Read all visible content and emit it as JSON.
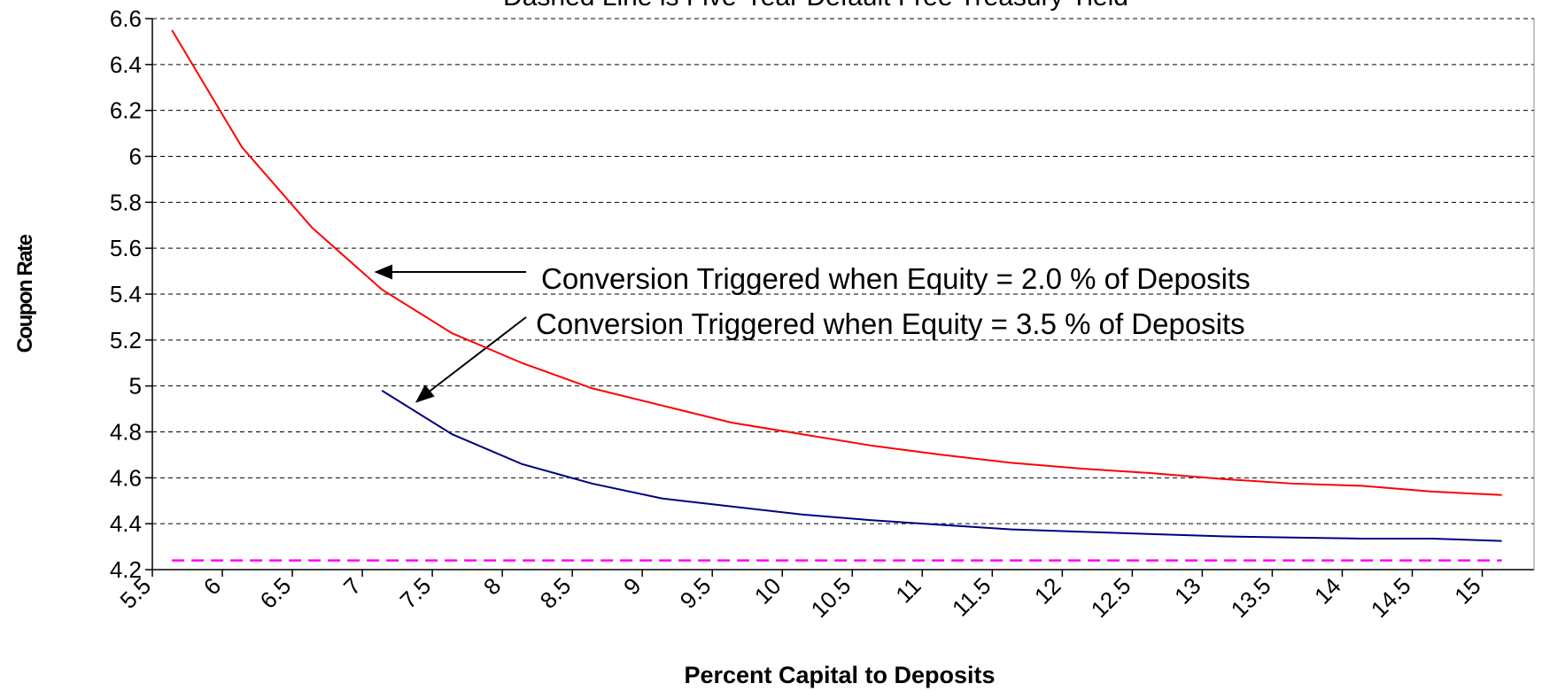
{
  "chart_data": {
    "type": "line",
    "title": "Dashed Line is Five-Year Default Free Treasury Yield",
    "x_label": "Percent Capital to Deposits",
    "y_label": "Coupon Rate",
    "annotations": [
      "Conversion Triggered when Equity = 2.0 % of Deposits",
      "Conversion Triggered when Equity = 3.5 % of Deposits"
    ],
    "x": [
      5.64,
      6.14,
      6.64,
      7.14,
      7.64,
      8.14,
      8.64,
      9.14,
      9.64,
      10.14,
      10.64,
      11.14,
      11.64,
      12.14,
      12.64,
      13.14,
      13.64,
      14.14,
      14.64,
      15.14
    ],
    "series": [
      {
        "name": "Conversion Triggered when Equity = 2.0 % of Deposits",
        "color": "#ff0000",
        "dashed": false,
        "values": [
          6.55,
          6.04,
          5.69,
          5.42,
          5.23,
          5.1,
          4.99,
          4.915,
          4.84,
          4.79,
          4.74,
          4.7,
          4.665,
          4.64,
          4.62,
          4.595,
          4.575,
          4.565,
          4.54,
          4.525
        ]
      },
      {
        "name": "Conversion Triggered when Equity = 3.5 % of Deposits",
        "color": "#000080",
        "dashed": false,
        "values": [
          null,
          null,
          null,
          4.98,
          4.79,
          4.66,
          4.575,
          4.51,
          4.475,
          4.44,
          4.415,
          4.395,
          4.375,
          4.365,
          4.355,
          4.345,
          4.34,
          4.335,
          4.335,
          4.325
        ]
      },
      {
        "name": "Five-Year Default Free Treasury Yield",
        "color": "#ff00ff",
        "dashed": true,
        "values": [
          4.24,
          4.24,
          4.24,
          4.24,
          4.24,
          4.24,
          4.24,
          4.24,
          4.24,
          4.24,
          4.24,
          4.24,
          4.24,
          4.24,
          4.24,
          4.24,
          4.24,
          4.24,
          4.24,
          4.24
        ]
      }
    ],
    "xlim": [
      5.5,
      15.37
    ],
    "xticks": [
      5.5,
      6,
      6.5,
      7,
      7.5,
      8,
      8.5,
      9,
      9.5,
      10,
      10.5,
      11,
      11.5,
      12,
      12.5,
      13,
      13.5,
      14,
      14.5,
      15
    ],
    "ylim": [
      4.2,
      6.6
    ],
    "yticks": [
      4.2,
      4.4,
      4.6,
      4.8,
      5,
      5.2,
      5.4,
      5.6,
      5.8,
      6,
      6.2,
      6.4,
      6.6
    ],
    "grid": true,
    "legend": false
  }
}
